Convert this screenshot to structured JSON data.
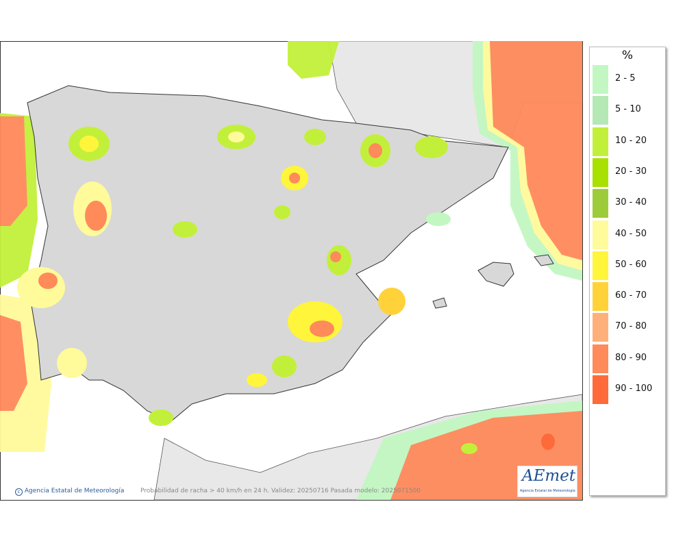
{
  "legend": {
    "title": "%",
    "items": [
      {
        "label": "2 - 5",
        "color": "#c2f7c2"
      },
      {
        "label": "5 - 10",
        "color": "#b4e8b4"
      },
      {
        "label": "10 - 20",
        "color": "#c2f03a"
      },
      {
        "label": "20 - 30",
        "color": "#a8e000"
      },
      {
        "label": "30 - 40",
        "color": "#9ccc3a"
      },
      {
        "label": "40 - 50",
        "color": "#fffa9a"
      },
      {
        "label": "50 - 60",
        "color": "#fff53a"
      },
      {
        "label": "60 - 70",
        "color": "#ffd23a"
      },
      {
        "label": "70 - 80",
        "color": "#ffb07a"
      },
      {
        "label": "80 - 90",
        "color": "#ff8a5a"
      },
      {
        "label": "90 - 100",
        "color": "#ff6a3a"
      }
    ]
  },
  "footer": {
    "credit": "Agencia Estatal de Meteorología",
    "caption": "Probabilidad de racha > 40 km/h en 24 h. Validez: 20250716 Pasada modelo: 2025071500"
  },
  "logo": {
    "name": "AEmet",
    "subtitle": "Agencia Estatal de Meteorología"
  }
}
